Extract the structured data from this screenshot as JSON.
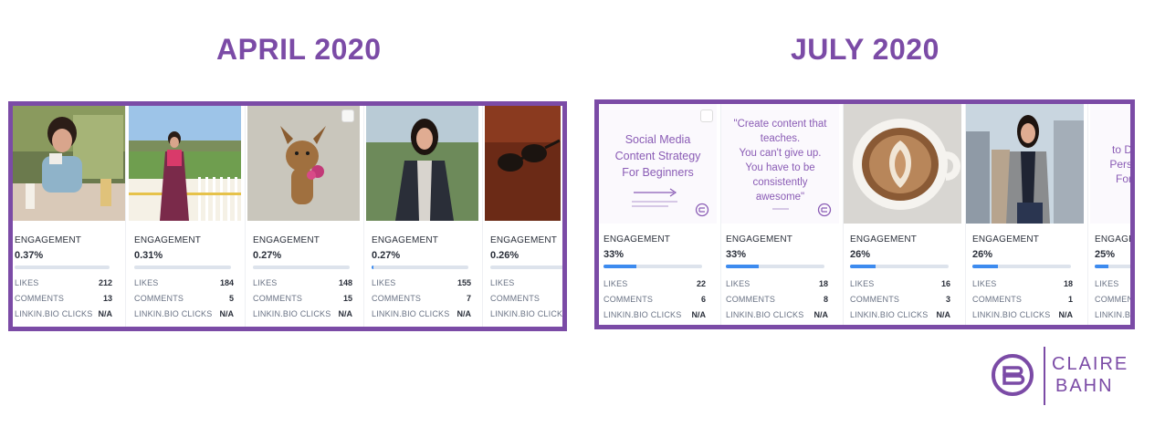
{
  "headings": {
    "april": "APRIL 2020",
    "july": "JULY 2020"
  },
  "labels": {
    "engagement": "ENGAGEMENT",
    "likes": "LIKES",
    "comments": "COMMENTS",
    "linkin_clicks": "LINKIN.BIO CLICKS"
  },
  "april_cards": [
    {
      "engagement": "0.37%",
      "engagement_fraction": 0.0037,
      "likes": "212",
      "comments": "13",
      "clicks": "N/A",
      "image": "woman-cafe-photo"
    },
    {
      "engagement": "0.31%",
      "engagement_fraction": 0.0031,
      "likes": "184",
      "comments": "5",
      "clicks": "N/A",
      "image": "woman-balcony-photo"
    },
    {
      "engagement": "0.27%",
      "engagement_fraction": 0.0027,
      "likes": "148",
      "comments": "15",
      "clicks": "N/A",
      "image": "dog-photo"
    },
    {
      "engagement": "0.27%",
      "engagement_fraction": 0.0027,
      "likes": "155",
      "comments": "7",
      "clicks": "N/A",
      "image": "woman-portrait-photo"
    },
    {
      "engagement": "0.26%",
      "engagement_fraction": 0.0026,
      "likes": "",
      "comments": "",
      "clicks": "",
      "image": "sunglasses-photo"
    }
  ],
  "july_cards": [
    {
      "engagement": "33%",
      "engagement_fraction": 0.33,
      "likes": "22",
      "comments": "6",
      "clicks": "N/A",
      "image": "content-strategy-graphic",
      "graphic_text": [
        "Social Media",
        "Content Strategy",
        "For Beginners"
      ]
    },
    {
      "engagement": "33%",
      "engagement_fraction": 0.33,
      "likes": "18",
      "comments": "8",
      "clicks": "N/A",
      "image": "quote-graphic",
      "graphic_text": [
        "\"Create content that",
        "teaches.",
        "You can't give up.",
        "You have to be",
        "consistently",
        "awesome\""
      ]
    },
    {
      "engagement": "26%",
      "engagement_fraction": 0.26,
      "likes": "16",
      "comments": "3",
      "clicks": "N/A",
      "image": "latte-art-photo"
    },
    {
      "engagement": "26%",
      "engagement_fraction": 0.26,
      "likes": "18",
      "comments": "1",
      "clicks": "N/A",
      "image": "woman-rooftop-photo"
    },
    {
      "engagement": "25%",
      "engagement_fraction": 0.25,
      "likes": "",
      "comments": "",
      "clicks": "",
      "image": "partial-graphic",
      "graphic_text": [
        "to D",
        "Pers",
        "For"
      ]
    }
  ],
  "july_comments_partial": "COMMEN",
  "april_clicks_partial": "LINKIN.BIO CLICK",
  "logo": {
    "line1": "CLAIRE",
    "line2": "BAHN"
  },
  "graphic_small": {
    "brand": "CLAIRE BAHN"
  },
  "colors": {
    "purple": "#7b4ba6",
    "bar_fill": "#3d8bef",
    "bar_track": "#dde3ec"
  }
}
